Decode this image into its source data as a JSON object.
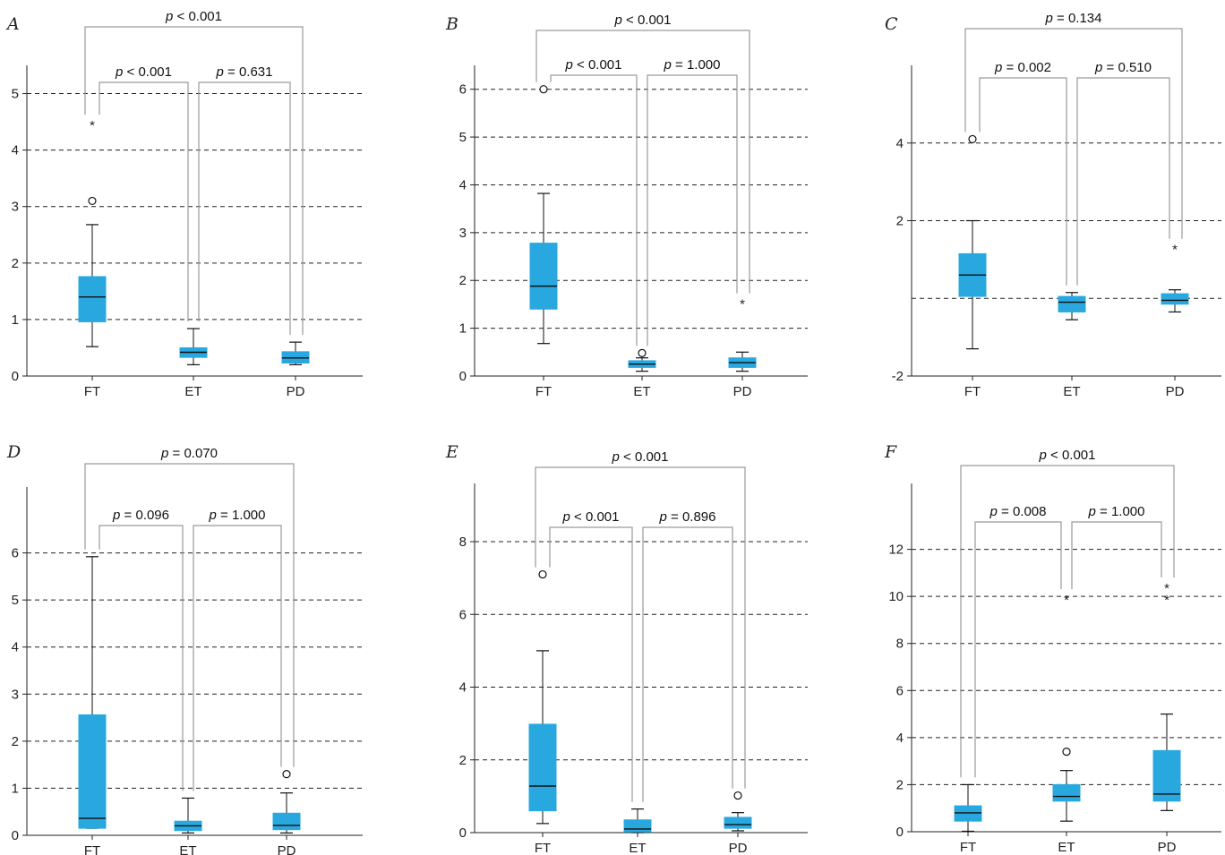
{
  "colors": {
    "box": "#29a8e0",
    "bracket": "#9a9a9a",
    "axis": "#222222",
    "grid": "#222222"
  },
  "chart_data": [
    {
      "panel": "A",
      "type": "box",
      "categories": [
        "FT",
        "ET",
        "PD"
      ],
      "ylim": [
        0,
        5.5
      ],
      "yticks": [
        0,
        1,
        2,
        3,
        4,
        5
      ],
      "grid": [
        1,
        2,
        3,
        4,
        5
      ],
      "boxes": [
        {
          "name": "FT",
          "whisker_low": 0.52,
          "q1": 0.96,
          "median": 1.4,
          "q3": 1.76,
          "whisker_high": 2.68,
          "outliers": [
            3.1
          ],
          "extremes": [
            4.5
          ]
        },
        {
          "name": "ET",
          "whisker_low": 0.2,
          "q1": 0.33,
          "median": 0.42,
          "q3": 0.5,
          "whisker_high": 0.84,
          "outliers": [],
          "extremes": []
        },
        {
          "name": "PD",
          "whisker_low": 0.2,
          "q1": 0.23,
          "median": 0.32,
          "q3": 0.43,
          "whisker_high": 0.6,
          "outliers": [],
          "extremes": []
        }
      ],
      "comparisons": [
        {
          "from": 0,
          "to": 2,
          "level": "outer",
          "symbol": "p",
          "text": " < 0.001"
        },
        {
          "from": 0,
          "to": 1,
          "level": "inner",
          "symbol": "p",
          "text": " < 0.001"
        },
        {
          "from": 1,
          "to": 2,
          "level": "inner",
          "symbol": "p",
          "text": " = 0.631"
        }
      ]
    },
    {
      "panel": "B",
      "type": "box",
      "categories": [
        "FT",
        "ET",
        "PD"
      ],
      "ylim": [
        0,
        6.5
      ],
      "yticks": [
        0,
        1,
        2,
        3,
        4,
        5,
        6
      ],
      "grid": [
        1,
        2,
        3,
        4,
        5,
        6
      ],
      "boxes": [
        {
          "name": "FT",
          "whisker_low": 0.68,
          "q1": 1.4,
          "median": 1.88,
          "q3": 2.78,
          "whisker_high": 3.82,
          "outliers": [
            6.0
          ],
          "extremes": []
        },
        {
          "name": "ET",
          "whisker_low": 0.1,
          "q1": 0.18,
          "median": 0.25,
          "q3": 0.32,
          "whisker_high": 0.38,
          "outliers": [
            0.48
          ],
          "extremes": []
        },
        {
          "name": "PD",
          "whisker_low": 0.1,
          "q1": 0.18,
          "median": 0.28,
          "q3": 0.38,
          "whisker_high": 0.5,
          "outliers": [],
          "extremes": [
            1.58
          ]
        }
      ],
      "comparisons": [
        {
          "from": 0,
          "to": 2,
          "level": "outer",
          "symbol": "p",
          "text": " < 0.001"
        },
        {
          "from": 0,
          "to": 1,
          "level": "inner",
          "symbol": "p",
          "text": " < 0.001"
        },
        {
          "from": 1,
          "to": 2,
          "level": "inner",
          "symbol": "p",
          "text": " = 1.000"
        }
      ]
    },
    {
      "panel": "C",
      "type": "box",
      "categories": [
        "FT",
        "ET",
        "PD"
      ],
      "ylim": [
        -2,
        6
      ],
      "yticks": [
        -2,
        2,
        4
      ],
      "grid": [
        0,
        2,
        4
      ],
      "boxes": [
        {
          "name": "FT",
          "whisker_low": -1.3,
          "q1": 0.05,
          "median": 0.6,
          "q3": 1.15,
          "whisker_high": 2.0,
          "outliers": [
            4.1
          ],
          "extremes": []
        },
        {
          "name": "ET",
          "whisker_low": -0.55,
          "q1": -0.35,
          "median": -0.1,
          "q3": 0.05,
          "whisker_high": 0.15,
          "outliers": [],
          "extremes": []
        },
        {
          "name": "PD",
          "whisker_low": -0.35,
          "q1": -0.15,
          "median": -0.05,
          "q3": 0.12,
          "whisker_high": 0.22,
          "outliers": [],
          "extremes": [
            1.35
          ]
        }
      ],
      "comparisons": [
        {
          "from": 0,
          "to": 2,
          "level": "outer",
          "symbol": "p",
          "text": " = 0.134"
        },
        {
          "from": 0,
          "to": 1,
          "level": "inner",
          "symbol": "p",
          "text": " = 0.002"
        },
        {
          "from": 1,
          "to": 2,
          "level": "inner",
          "symbol": "p",
          "text": " = 0.510"
        }
      ]
    },
    {
      "panel": "D",
      "type": "box",
      "categories": [
        "FT",
        "ET",
        "PD"
      ],
      "ylim": [
        0,
        7.4
      ],
      "yticks": [
        0,
        1,
        2,
        3,
        4,
        5,
        6
      ],
      "grid": [
        1,
        2,
        3,
        4,
        5,
        6
      ],
      "boxes": [
        {
          "name": "FT",
          "whisker_low": 0.15,
          "q1": 0.15,
          "median": 0.36,
          "q3": 2.56,
          "whisker_high": 5.92,
          "outliers": [],
          "extremes": []
        },
        {
          "name": "ET",
          "whisker_low": 0.05,
          "q1": 0.1,
          "median": 0.2,
          "q3": 0.3,
          "whisker_high": 0.79,
          "outliers": [],
          "extremes": []
        },
        {
          "name": "PD",
          "whisker_low": 0.05,
          "q1": 0.12,
          "median": 0.21,
          "q3": 0.47,
          "whisker_high": 0.9,
          "outliers": [
            1.3
          ],
          "extremes": []
        }
      ],
      "comparisons": [
        {
          "from": 0,
          "to": 2,
          "level": "outer",
          "symbol": "p",
          "text": " = 0.070"
        },
        {
          "from": 0,
          "to": 1,
          "level": "inner",
          "symbol": "p",
          "text": " = 0.096"
        },
        {
          "from": 1,
          "to": 2,
          "level": "inner",
          "symbol": "p",
          "text": " = 1.000"
        }
      ]
    },
    {
      "panel": "E",
      "type": "box",
      "categories": [
        "FT",
        "ET",
        "PD"
      ],
      "ylim": [
        0,
        9.6
      ],
      "yticks": [
        0,
        2,
        4,
        6,
        8
      ],
      "grid": [
        2,
        4,
        6,
        8
      ],
      "boxes": [
        {
          "name": "FT",
          "whisker_low": 0.25,
          "q1": 0.6,
          "median": 1.28,
          "q3": 2.98,
          "whisker_high": 5.0,
          "outliers": [
            7.1
          ],
          "extremes": []
        },
        {
          "name": "ET",
          "whisker_low": 0.0,
          "q1": 0.02,
          "median": 0.1,
          "q3": 0.35,
          "whisker_high": 0.65,
          "outliers": [],
          "extremes": []
        },
        {
          "name": "PD",
          "whisker_low": 0.05,
          "q1": 0.12,
          "median": 0.22,
          "q3": 0.42,
          "whisker_high": 0.55,
          "outliers": [
            1.02
          ],
          "extremes": []
        }
      ],
      "comparisons": [
        {
          "from": 0,
          "to": 2,
          "level": "outer",
          "symbol": "p",
          "text": " < 0.001"
        },
        {
          "from": 0,
          "to": 1,
          "level": "inner",
          "symbol": "p",
          "text": " < 0.001"
        },
        {
          "from": 1,
          "to": 2,
          "level": "inner",
          "symbol": "p",
          "text": " = 0.896"
        }
      ]
    },
    {
      "panel": "F",
      "type": "box",
      "categories": [
        "FT",
        "ET",
        "PD"
      ],
      "ylim": [
        0,
        14.8
      ],
      "yticks": [
        0,
        2,
        4,
        6,
        8,
        10,
        12
      ],
      "grid": [
        2,
        4,
        6,
        8,
        10,
        12
      ],
      "boxes": [
        {
          "name": "FT",
          "whisker_low": 0.02,
          "q1": 0.45,
          "median": 0.8,
          "q3": 1.1,
          "whisker_high": 2.0,
          "outliers": [],
          "extremes": []
        },
        {
          "name": "ET",
          "whisker_low": 0.45,
          "q1": 1.3,
          "median": 1.5,
          "q3": 2.0,
          "whisker_high": 2.6,
          "outliers": [
            3.4
          ],
          "extremes": [
            10.0
          ]
        },
        {
          "name": "PD",
          "whisker_low": 0.9,
          "q1": 1.3,
          "median": 1.6,
          "q3": 3.45,
          "whisker_high": 5.0,
          "outliers": [],
          "extremes": [
            10.0,
            10.5
          ]
        }
      ],
      "comparisons": [
        {
          "from": 0,
          "to": 2,
          "level": "outer",
          "symbol": "p",
          "text": " < 0.001"
        },
        {
          "from": 0,
          "to": 1,
          "level": "inner",
          "symbol": "p",
          "text": " = 0.008"
        },
        {
          "from": 1,
          "to": 2,
          "level": "inner",
          "symbol": "p",
          "text": " = 1.000"
        }
      ]
    }
  ]
}
